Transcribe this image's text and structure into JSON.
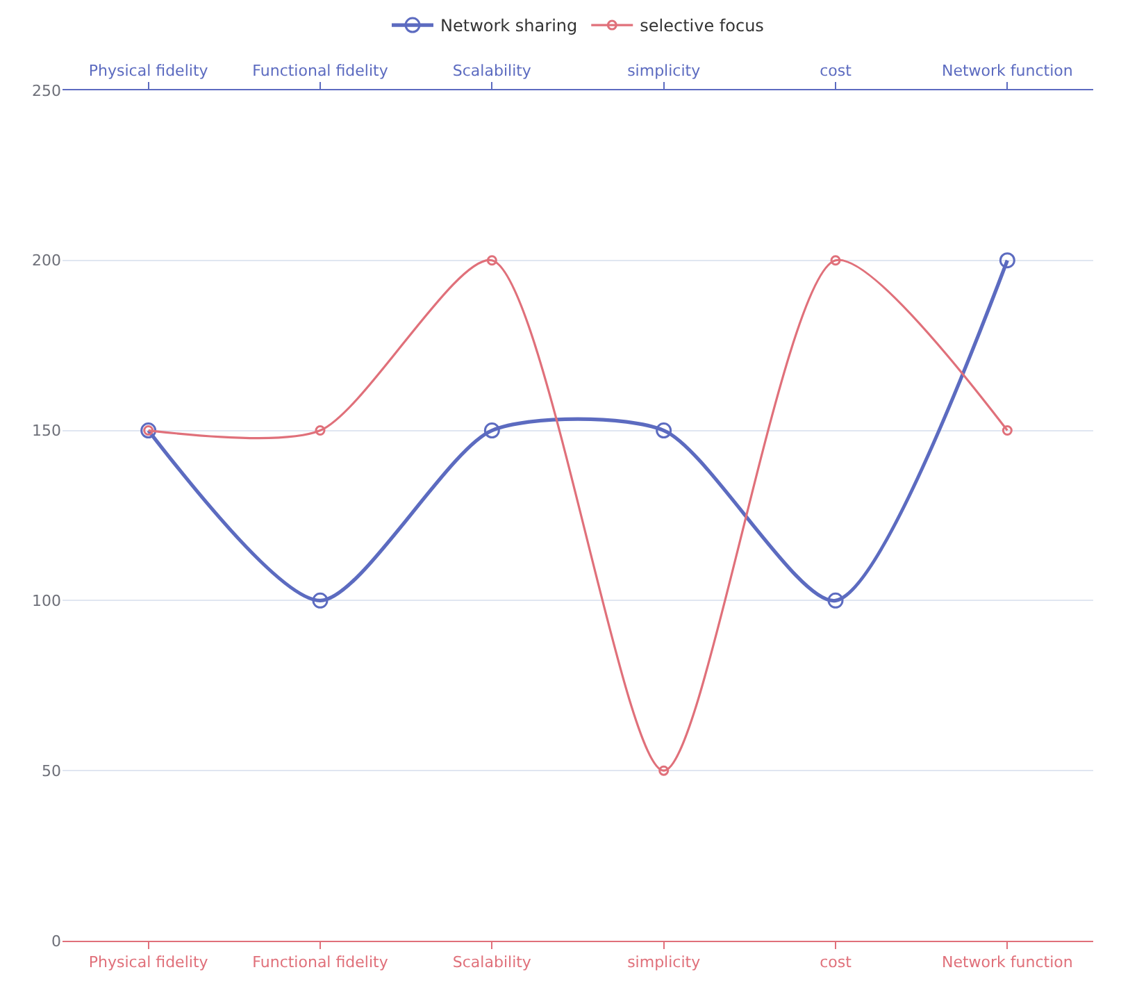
{
  "chart_data": {
    "type": "line",
    "categories": [
      "Physical fidelity",
      "Functional fidelity",
      "Scalability",
      "simplicity",
      "cost",
      "Network function"
    ],
    "series": [
      {
        "name": "Network sharing",
        "color": "#5c6bc0",
        "values": [
          150,
          100,
          150,
          150,
          100,
          200
        ]
      },
      {
        "name": "selective focus",
        "color": "#e0707a",
        "values": [
          150,
          150,
          200,
          50,
          200,
          150
        ]
      }
    ],
    "ylim": [
      0,
      250
    ],
    "yticks": [
      0,
      50,
      100,
      150,
      200,
      250
    ],
    "grid": "y",
    "legend": "top",
    "marker": "circle",
    "line_style": "solid"
  }
}
